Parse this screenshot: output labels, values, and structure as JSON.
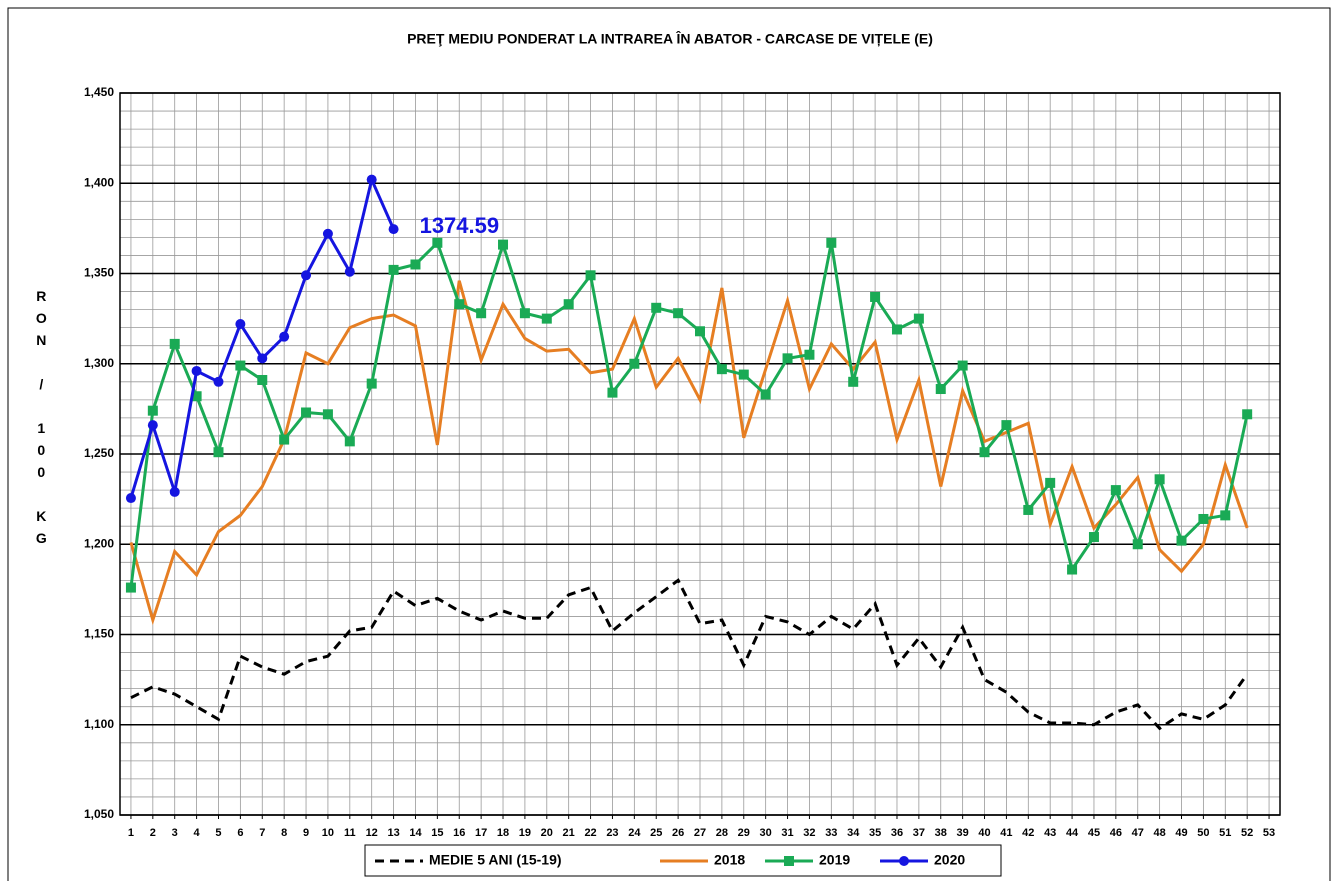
{
  "chart_data": {
    "type": "line",
    "title": "PREŢ MEDIU PONDERAT LA INTRAREA ÎN ABATOR - CARCASE DE VIȚELE (E)",
    "y_label": "RON / 100 KG",
    "annotation": "1374.59",
    "x": [
      1,
      2,
      3,
      4,
      5,
      6,
      7,
      8,
      9,
      10,
      11,
      12,
      13,
      14,
      15,
      16,
      17,
      18,
      19,
      20,
      21,
      22,
      23,
      24,
      25,
      26,
      27,
      28,
      29,
      30,
      31,
      32,
      33,
      34,
      35,
      36,
      37,
      38,
      39,
      40,
      41,
      42,
      43,
      44,
      45,
      46,
      47,
      48,
      49,
      50,
      51,
      52
    ],
    "xlim": [
      0.5,
      53.5
    ],
    "xticks": [
      1,
      2,
      3,
      4,
      5,
      6,
      7,
      8,
      9,
      10,
      11,
      12,
      13,
      14,
      15,
      16,
      17,
      18,
      19,
      20,
      21,
      22,
      23,
      24,
      25,
      26,
      27,
      28,
      29,
      30,
      31,
      32,
      33,
      34,
      35,
      36,
      37,
      38,
      39,
      40,
      41,
      42,
      43,
      44,
      45,
      46,
      47,
      48,
      49,
      50,
      51,
      52,
      53
    ],
    "ylim": [
      1050,
      1450
    ],
    "yticks": [
      {
        "value": 1050,
        "label": "1,050"
      },
      {
        "value": 1100,
        "label": "1,100"
      },
      {
        "value": 1150,
        "label": "1,150"
      },
      {
        "value": 1200,
        "label": "1,200"
      },
      {
        "value": 1250,
        "label": "1,250"
      },
      {
        "value": 1300,
        "label": "1,300"
      },
      {
        "value": 1350,
        "label": "1,350"
      },
      {
        "value": 1400,
        "label": "1,400"
      },
      {
        "value": 1450,
        "label": "1,450"
      }
    ],
    "y_minor_ticks": [
      1060,
      1070,
      1080,
      1090,
      1110,
      1120,
      1130,
      1140,
      1160,
      1170,
      1180,
      1190,
      1210,
      1220,
      1230,
      1240,
      1260,
      1270,
      1280,
      1290,
      1310,
      1320,
      1330,
      1340,
      1360,
      1370,
      1380,
      1390,
      1410,
      1420,
      1430,
      1440
    ],
    "grid": true,
    "legend": "bottom",
    "series": [
      {
        "name": "MEDIE 5 ANI (15-19)",
        "color": "#000000",
        "dash": true,
        "marker": "none",
        "values": [
          1115,
          1121,
          1117,
          1110,
          1103,
          1138,
          1132,
          1128,
          1135,
          1138,
          1152,
          1154,
          1174,
          1166,
          1170,
          1163,
          1158,
          1163,
          1159,
          1159,
          1172,
          1176,
          1152,
          1162,
          1171,
          1180,
          1156,
          1158,
          1133,
          1160,
          1157,
          1150,
          1160,
          1153,
          1167,
          1133,
          1148,
          1132,
          1154,
          1125,
          1118,
          1107,
          1101,
          1101,
          1100,
          1107,
          1111,
          1098,
          1106,
          1103,
          1111,
          1128
        ]
      },
      {
        "name": "2018",
        "color": "#e67e22",
        "dash": false,
        "marker": "none",
        "values": [
          1201,
          1158,
          1196,
          1183,
          1207,
          1216,
          1232,
          1258,
          1306,
          1300,
          1320,
          1325,
          1327,
          1321,
          1255,
          1346,
          1302,
          1333,
          1314,
          1307,
          1308,
          1295,
          1297,
          1325,
          1287,
          1303,
          1280,
          1342,
          1259,
          1297,
          1335,
          1286,
          1311,
          1297,
          1312,
          1258,
          1291,
          1232,
          1285,
          1257,
          1262,
          1267,
          1211,
          1243,
          1209,
          1222,
          1237,
          1197,
          1185,
          1200,
          1244,
          1209
        ]
      },
      {
        "name": "2019",
        "color": "#1aaa55",
        "dash": false,
        "marker": "square",
        "values": [
          1176,
          1274,
          1311,
          1282,
          1251,
          1299,
          1291,
          1258,
          1273,
          1272,
          1257,
          1289,
          1352,
          1355,
          1367,
          1333,
          1328,
          1366,
          1328,
          1325,
          1333,
          1349,
          1284,
          1300,
          1331,
          1328,
          1318,
          1297,
          1294,
          1283,
          1303,
          1305,
          1367,
          1290,
          1337,
          1319,
          1325,
          1286,
          1299,
          1251,
          1266,
          1219,
          1234,
          1186,
          1204,
          1230,
          1200,
          1236,
          1202,
          1214,
          1216,
          1272
        ]
      },
      {
        "name": "2020",
        "color": "#1515e0",
        "dash": false,
        "marker": "circle",
        "values": [
          1225.6,
          1266,
          1229,
          1296,
          1290,
          1322,
          1303,
          1315,
          1349,
          1372,
          1351,
          1402,
          1374.59,
          null,
          null,
          null,
          null,
          null,
          null,
          null,
          null,
          null,
          null,
          null,
          null,
          null,
          null,
          null,
          null,
          null,
          null,
          null,
          null,
          null,
          null,
          null,
          null,
          null,
          null,
          null,
          null,
          null,
          null,
          null,
          null,
          null,
          null,
          null,
          null,
          null,
          null,
          null
        ]
      }
    ]
  }
}
